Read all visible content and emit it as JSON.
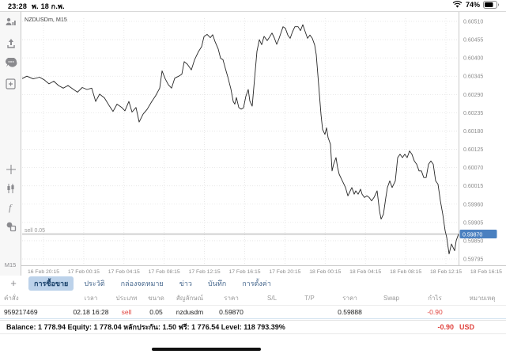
{
  "status_bar": {
    "time": "23:28",
    "date": "พ. 18 ก.พ.",
    "battery": "74%"
  },
  "toolbar": {
    "timeframe": "M15"
  },
  "chart": {
    "symbol_label": "NZDUSDm, M15",
    "position_label": "sell 0.05",
    "current_price_badge": "0.59870"
  },
  "chart_data": {
    "type": "line",
    "title": "NZDUSDm, M15",
    "symbol": "NZDUSDm",
    "timeframe": "M15",
    "legend_position": "none",
    "grid": "dotted",
    "ylim": [
      0.59795,
      0.6051
    ],
    "y_ticks": [
      0.6051,
      0.60455,
      0.604,
      0.60345,
      0.6029,
      0.60235,
      0.6018,
      0.60125,
      0.6007,
      0.60015,
      0.5996,
      0.59905,
      0.5985,
      0.59795
    ],
    "x_labels": [
      "16 Feb 20:15",
      "17 Feb 00:15",
      "17 Feb 04:15",
      "17 Feb 08:15",
      "17 Feb 12:15",
      "17 Feb 16:15",
      "17 Feb 20:15",
      "18 Feb 00:15",
      "18 Feb 04:15",
      "18 Feb 08:15",
      "18 Feb 12:15",
      "18 Feb 16:15"
    ],
    "current_price": 0.5987,
    "position_line": {
      "price": 0.5987,
      "label": "sell 0.05"
    },
    "series": [
      {
        "name": "NZDUSDm bid",
        "x_unit": "plot_px_0_552",
        "points": [
          [
            0,
            0.60338
          ],
          [
            6,
            0.60345
          ],
          [
            14,
            0.60337
          ],
          [
            22,
            0.60342
          ],
          [
            28,
            0.60334
          ],
          [
            34,
            0.60322
          ],
          [
            40,
            0.6033
          ],
          [
            46,
            0.60317
          ],
          [
            52,
            0.60309
          ],
          [
            58,
            0.60317
          ],
          [
            64,
            0.60307
          ],
          [
            70,
            0.60297
          ],
          [
            76,
            0.60311
          ],
          [
            82,
            0.60305
          ],
          [
            88,
            0.60309
          ],
          [
            93,
            0.60269
          ],
          [
            98,
            0.60291
          ],
          [
            104,
            0.6028
          ],
          [
            110,
            0.60257
          ],
          [
            115,
            0.60239
          ],
          [
            120,
            0.60261
          ],
          [
            126,
            0.60251
          ],
          [
            130,
            0.60241
          ],
          [
            135,
            0.60269
          ],
          [
            139,
            0.60237
          ],
          [
            144,
            0.60251
          ],
          [
            148,
            0.60207
          ],
          [
            153,
            0.60231
          ],
          [
            158,
            0.60245
          ],
          [
            164,
            0.60269
          ],
          [
            169,
            0.60287
          ],
          [
            174,
            0.60309
          ],
          [
            177,
            0.60361
          ],
          [
            181,
            0.60337
          ],
          [
            185,
            0.60319
          ],
          [
            189,
            0.60309
          ],
          [
            193,
            0.60339
          ],
          [
            198,
            0.60345
          ],
          [
            202,
            0.60351
          ],
          [
            205,
            0.60389
          ],
          [
            209,
            0.60381
          ],
          [
            214,
            0.60364
          ],
          [
            218,
            0.60394
          ],
          [
            223,
            0.60419
          ],
          [
            227,
            0.60434
          ],
          [
            230,
            0.60464
          ],
          [
            234,
            0.60471
          ],
          [
            238,
            0.60461
          ],
          [
            241,
            0.6047
          ],
          [
            244,
            0.60449
          ],
          [
            248,
            0.60427
          ],
          [
            251,
            0.60399
          ],
          [
            254,
            0.60395
          ],
          [
            257,
            0.60369
          ],
          [
            260,
            0.60344
          ],
          [
            264,
            0.60307
          ],
          [
            267,
            0.60269
          ],
          [
            269,
            0.60261
          ],
          [
            271,
            0.60281
          ],
          [
            274,
            0.60251
          ],
          [
            277,
            0.60246
          ],
          [
            280,
            0.6025
          ],
          [
            283,
            0.60285
          ],
          [
            286,
            0.60305
          ],
          [
            288,
            0.6027
          ],
          [
            291,
            0.60255
          ],
          [
            294,
            0.60338
          ],
          [
            297,
            0.6042
          ],
          [
            300,
            0.60455
          ],
          [
            303,
            0.6044
          ],
          [
            306,
            0.60465
          ],
          [
            310,
            0.60452
          ],
          [
            313,
            0.60463
          ],
          [
            316,
            0.60475
          ],
          [
            319,
            0.6046
          ],
          [
            322,
            0.60441
          ],
          [
            325,
            0.60459
          ],
          [
            328,
            0.6048
          ],
          [
            330,
            0.60494
          ],
          [
            333,
            0.60489
          ],
          [
            336,
            0.60469
          ],
          [
            339,
            0.60459
          ],
          [
            342,
            0.60479
          ],
          [
            345,
            0.60494
          ],
          [
            349,
            0.60494
          ],
          [
            352,
            0.60482
          ],
          [
            355,
            0.605
          ],
          [
            358,
            0.60479
          ],
          [
            361,
            0.60459
          ],
          [
            364,
            0.60469
          ],
          [
            367,
            0.60459
          ],
          [
            370,
            0.60439
          ],
          [
            372,
            0.6041
          ],
          [
            374,
            0.6035
          ],
          [
            376,
            0.6029
          ],
          [
            378,
            0.6023
          ],
          [
            380,
            0.60185
          ],
          [
            383,
            0.6017
          ],
          [
            385,
            0.6019
          ],
          [
            387,
            0.6016
          ],
          [
            390,
            0.6014
          ],
          [
            392,
            0.6006
          ],
          [
            394,
            0.6008
          ],
          [
            397,
            0.601
          ],
          [
            399,
            0.6007
          ],
          [
            401,
            0.6005
          ],
          [
            404,
            0.60035
          ],
          [
            407,
            0.6002
          ],
          [
            409,
            0.6001
          ],
          [
            412,
            0.59985
          ],
          [
            415,
            0.6
          ],
          [
            417,
            0.6001
          ],
          [
            420,
            0.5999
          ],
          [
            422,
            0.6
          ],
          [
            425,
            0.5999
          ],
          [
            428,
            0.60005
          ],
          [
            430,
            0.5999
          ],
          [
            433,
            0.5998
          ],
          [
            436,
            0.59985
          ],
          [
            439,
            0.5998
          ],
          [
            442,
            0.5997
          ],
          [
            445,
            0.5998
          ],
          [
            449,
            0.6
          ],
          [
            452,
            0.5994
          ],
          [
            454,
            0.59915
          ],
          [
            457,
            0.5993
          ],
          [
            460,
            0.5998
          ],
          [
            462,
            0.6001
          ],
          [
            465,
            0.6003
          ],
          [
            468,
            0.6001
          ],
          [
            472,
            0.6003
          ],
          [
            475,
            0.601
          ],
          [
            478,
            0.6011
          ],
          [
            481,
            0.601
          ],
          [
            484,
            0.6011
          ],
          [
            487,
            0.601
          ],
          [
            490,
            0.6012
          ],
          [
            493,
            0.6011
          ],
          [
            496,
            0.6009
          ],
          [
            499,
            0.6008
          ],
          [
            502,
            0.6006
          ],
          [
            505,
            0.6006
          ],
          [
            508,
            0.6004
          ],
          [
            511,
            0.6004
          ],
          [
            514,
            0.6008
          ],
          [
            517,
            0.6009
          ],
          [
            520,
            0.6008
          ],
          [
            523,
            0.6003
          ],
          [
            526,
            0.6002
          ],
          [
            529,
            0.5997
          ],
          [
            532,
            0.5993
          ],
          [
            535,
            0.5988
          ],
          [
            537,
            0.5986
          ],
          [
            540,
            0.5981
          ],
          [
            543,
            0.5984
          ],
          [
            545,
            0.5983
          ],
          [
            547,
            0.5982
          ],
          [
            549,
            0.5985
          ],
          [
            552,
            0.5987
          ]
        ]
      }
    ]
  },
  "tabs": {
    "add_label": "+",
    "items": [
      {
        "label": "การซื้อขาย",
        "selected": true
      },
      {
        "label": "ประวัติ",
        "selected": false
      },
      {
        "label": "กล่องจดหมาย",
        "selected": false
      },
      {
        "label": "ข่าว",
        "selected": false
      },
      {
        "label": "บันทึก",
        "selected": false
      },
      {
        "label": "การตั้งค่า",
        "selected": false
      }
    ]
  },
  "table": {
    "headers": [
      "คำสั่ง",
      "เวลา",
      "ประเภท",
      "ขนาด",
      "สัญลักษณ์",
      "ราคา",
      "S/L",
      "T/P",
      "ราคา",
      "Swap",
      "กำไร",
      "หมายเหตุ"
    ],
    "rows": [
      [
        "959217469",
        "02.18 16:28",
        "sell",
        "0.05",
        "nzdusdm",
        "0.59870",
        "",
        "",
        "0.59888",
        "",
        "-0.90",
        ""
      ]
    ]
  },
  "footer": {
    "balance_summary": "Balance: 1 778.94 Equity: 1 778.04 หลักประกัน: 1.50 ฟรี: 1 776.54 Level: 118 793.39%",
    "profit": "-0.90",
    "currency": "USD"
  }
}
